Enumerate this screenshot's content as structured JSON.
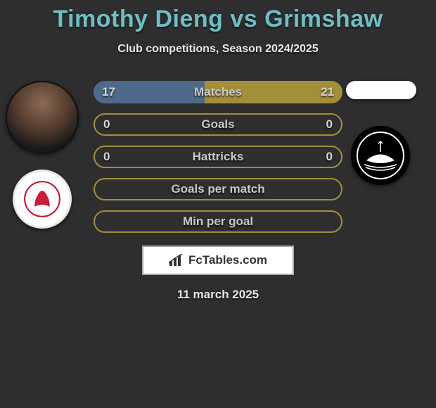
{
  "title": "Timothy Dieng vs Grimshaw",
  "subtitle": "Club competitions, Season 2024/2025",
  "date": "11 march 2025",
  "footer_brand": "FcTables.com",
  "colors": {
    "background": "#2e2e2e",
    "title": "#6fbec5",
    "text_light": "#e8e8e8",
    "bar_label": "#c8c8c8",
    "left_player": "#4d6a8a",
    "right_player": "#a38e3a",
    "hollow_border": "#a38e3a"
  },
  "left": {
    "player_name": "Timothy Dieng",
    "club_name": "Middlesbrough",
    "club_color": "#c41e3a"
  },
  "right": {
    "player_name": "Grimshaw",
    "club_name": "Plymouth",
    "club_color": "#000000"
  },
  "stats": [
    {
      "label": "Matches",
      "left_value": "17",
      "right_value": "21",
      "left_share": 0.447,
      "right_share": 0.553,
      "style": "split"
    },
    {
      "label": "Goals",
      "left_value": "0",
      "right_value": "0",
      "style": "hollow"
    },
    {
      "label": "Hattricks",
      "left_value": "0",
      "right_value": "0",
      "style": "hollow"
    },
    {
      "label": "Goals per match",
      "style": "hollow_empty"
    },
    {
      "label": "Min per goal",
      "style": "hollow_empty"
    }
  ]
}
